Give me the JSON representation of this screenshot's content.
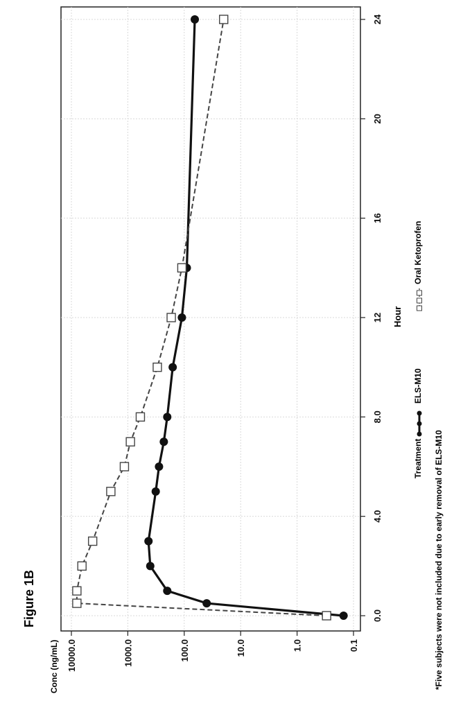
{
  "figure_label": "Figure 1B",
  "footnote": "*Five subjects were not included due to early removal of ELS-M10",
  "chart_data": {
    "type": "line",
    "title": "",
    "xlabel": "Hour",
    "ylabel": "Conc (ng/mL)",
    "y_scale": "log",
    "xlim": [
      0,
      24
    ],
    "ylim": [
      0.1,
      10000
    ],
    "x_ticks": [
      0,
      4,
      8,
      12,
      16,
      20,
      24
    ],
    "x_tick_labels": [
      "0.0",
      "4.0",
      "8.0",
      "12",
      "16",
      "20",
      "24"
    ],
    "y_ticks": [
      10000,
      1000,
      100,
      10,
      1,
      0.1
    ],
    "y_tick_labels": [
      "10000.0",
      "1000.0",
      "100.0",
      "10.0",
      "1.0",
      "0.1"
    ],
    "grid": true,
    "legend": {
      "title": "Treatment",
      "placement": "bottom",
      "entries": [
        "ELS-M10",
        "Oral Ketoprofen"
      ]
    },
    "series": [
      {
        "name": "ELS-M10",
        "style": "solid",
        "marker": "filled-circle",
        "color": "#111111",
        "x": [
          0,
          0.5,
          1,
          2,
          3,
          5,
          6,
          7,
          8,
          10,
          12,
          14,
          24
        ],
        "y": [
          0.15,
          40,
          200,
          400,
          430,
          320,
          280,
          230,
          200,
          160,
          110,
          90,
          65
        ]
      },
      {
        "name": "Oral Ketoprofen",
        "style": "dashed",
        "marker": "open-square",
        "color": "#444444",
        "x": [
          0,
          0.5,
          1,
          2,
          3,
          5,
          6,
          7,
          8,
          10,
          12,
          14,
          24
        ],
        "y": [
          0.3,
          8000,
          8000,
          6500,
          4200,
          2000,
          1150,
          900,
          600,
          300,
          170,
          110,
          20
        ]
      }
    ]
  }
}
